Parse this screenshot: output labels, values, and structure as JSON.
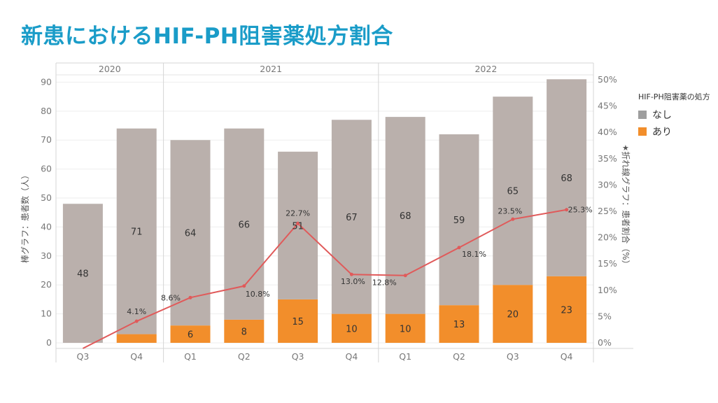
{
  "title": "新患におけるHIF-PH阻害薬処方割合",
  "legend": {
    "title": "HIF-PH阻害薬の処方",
    "items": [
      {
        "label": "なし",
        "color": "#9e9e9e"
      },
      {
        "label": "あり",
        "color": "#f28e2b"
      }
    ]
  },
  "axes": {
    "left_title": "棒グラフ：患者数（人）",
    "right_title": "折れ線グラフ：患者割合（%）",
    "right_icon": "pin-icon"
  },
  "chart_data": {
    "type": "bar",
    "stacked": true,
    "years": [
      {
        "label": "2020",
        "quarters": [
          "Q3",
          "Q4"
        ]
      },
      {
        "label": "2021",
        "quarters": [
          "Q1",
          "Q2",
          "Q3",
          "Q4"
        ]
      },
      {
        "label": "2022",
        "quarters": [
          "Q1",
          "Q2",
          "Q3",
          "Q4"
        ]
      }
    ],
    "categories": [
      "2020 Q3",
      "2020 Q4",
      "2021 Q1",
      "2021 Q2",
      "2021 Q3",
      "2021 Q4",
      "2022 Q1",
      "2022 Q2",
      "2022 Q3",
      "2022 Q4"
    ],
    "series": [
      {
        "name": "あり",
        "color": "#f28e2b",
        "values": [
          0,
          3,
          6,
          8,
          15,
          10,
          10,
          13,
          20,
          23
        ]
      },
      {
        "name": "なし",
        "color": "#bab0ac",
        "values": [
          48,
          71,
          64,
          66,
          51,
          67,
          68,
          59,
          65,
          68
        ]
      }
    ],
    "bar_labels": {
      "あり": [
        "",
        "",
        "6",
        "8",
        "15",
        "10",
        "10",
        "13",
        "20",
        "23"
      ],
      "なし": [
        "48",
        "71",
        "64",
        "66",
        "51",
        "67",
        "68",
        "59",
        "65",
        "68"
      ]
    },
    "line": {
      "color": "#e05a5a",
      "values": [
        0.0,
        4.1,
        8.6,
        10.8,
        22.7,
        13.0,
        12.8,
        18.1,
        23.5,
        25.3
      ],
      "labels": [
        "",
        "4.1%",
        "8.6%",
        "10.8%",
        "22.7%",
        "13.0%",
        "12.8%",
        "18.1%",
        "23.5%",
        "25.3%"
      ]
    },
    "ylim_left": [
      0,
      93
    ],
    "yticks_left": [
      0,
      10,
      20,
      30,
      40,
      50,
      60,
      70,
      80,
      90
    ],
    "ylim_right": [
      0,
      50
    ],
    "yticks_right": [
      "0%",
      "5%",
      "10%",
      "15%",
      "20%",
      "25%",
      "30%",
      "35%",
      "40%",
      "45%",
      "50%"
    ],
    "grid": true
  }
}
